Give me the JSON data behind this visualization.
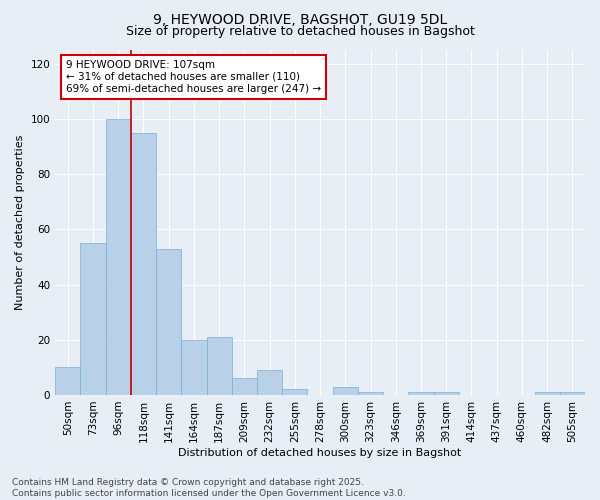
{
  "title1": "9, HEYWOOD DRIVE, BAGSHOT, GU19 5DL",
  "title2": "Size of property relative to detached houses in Bagshot",
  "xlabel": "Distribution of detached houses by size in Bagshot",
  "ylabel": "Number of detached properties",
  "categories": [
    "50sqm",
    "73sqm",
    "96sqm",
    "118sqm",
    "141sqm",
    "164sqm",
    "187sqm",
    "209sqm",
    "232sqm",
    "255sqm",
    "278sqm",
    "300sqm",
    "323sqm",
    "346sqm",
    "369sqm",
    "391sqm",
    "414sqm",
    "437sqm",
    "460sqm",
    "482sqm",
    "505sqm"
  ],
  "values": [
    10,
    55,
    100,
    95,
    53,
    20,
    21,
    6,
    9,
    2,
    0,
    3,
    1,
    0,
    1,
    1,
    0,
    0,
    0,
    1,
    1
  ],
  "bar_color": "#b8d0e8",
  "bar_edge_color": "#7aafd4",
  "vline_x_index": 2.5,
  "vline_color": "#cc0000",
  "annotation_text": "9 HEYWOOD DRIVE: 107sqm\n← 31% of detached houses are smaller (110)\n69% of semi-detached houses are larger (247) →",
  "annotation_box_color": "white",
  "annotation_box_edgecolor": "#cc0000",
  "ylim": [
    0,
    125
  ],
  "yticks": [
    0,
    20,
    40,
    60,
    80,
    100,
    120
  ],
  "background_color": "#e8eef5",
  "footer_text": "Contains HM Land Registry data © Crown copyright and database right 2025.\nContains public sector information licensed under the Open Government Licence v3.0.",
  "title_fontsize": 10,
  "subtitle_fontsize": 9,
  "axis_fontsize": 8,
  "tick_fontsize": 7.5,
  "footer_fontsize": 6.5,
  "annotation_fontsize": 7.5
}
